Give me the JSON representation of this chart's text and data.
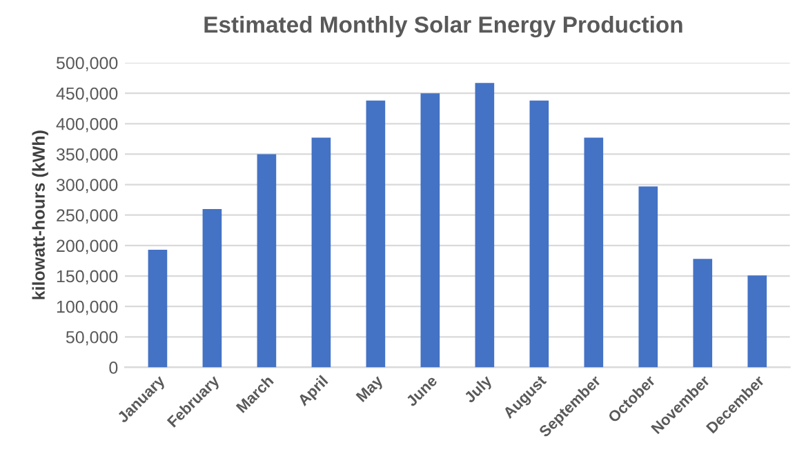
{
  "chart_data": {
    "type": "bar",
    "title": "Estimated Monthly Solar Energy Production",
    "ylabel": "kilowatt-hours (kWh)",
    "categories": [
      "January",
      "February",
      "March",
      "April",
      "May",
      "June",
      "July",
      "August",
      "September",
      "October",
      "November",
      "December"
    ],
    "values": [
      193000,
      260000,
      350000,
      377000,
      438000,
      450000,
      467000,
      438000,
      377000,
      297000,
      178000,
      151000
    ],
    "color": "#4472c4",
    "ylim": [
      0,
      500000
    ],
    "yticks": [
      {
        "value": 0,
        "label": "0"
      },
      {
        "value": 50000,
        "label": "50,000"
      },
      {
        "value": 100000,
        "label": "100,000"
      },
      {
        "value": 150000,
        "label": "150,000"
      },
      {
        "value": 200000,
        "label": "200,000"
      },
      {
        "value": 250000,
        "label": "250,000"
      },
      {
        "value": 300000,
        "label": "300,000"
      },
      {
        "value": 350000,
        "label": "350,000"
      },
      {
        "value": 400000,
        "label": "400,000"
      },
      {
        "value": 450000,
        "label": "450,000"
      },
      {
        "value": 500000,
        "label": "500,000"
      }
    ],
    "grid": "y"
  }
}
